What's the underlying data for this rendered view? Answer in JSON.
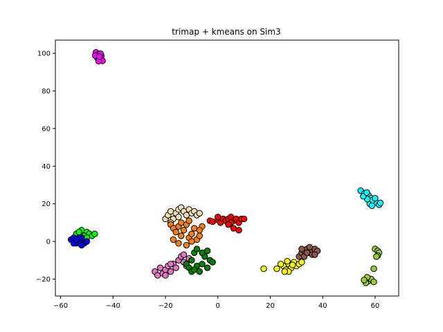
{
  "chart_data": {
    "type": "scatter",
    "title": "trimap + kmeans on Sim3",
    "xlabel": "",
    "ylabel": "",
    "xlim": [
      -62,
      69
    ],
    "ylim": [
      -29,
      107
    ],
    "xticks": [
      -60,
      -40,
      -20,
      0,
      20,
      40,
      60
    ],
    "yticks": [
      -20,
      0,
      20,
      40,
      60,
      80,
      100
    ],
    "grid": false,
    "legend": "none",
    "marker_edge_color": "#000000",
    "clusters": [
      {
        "color": "#ff00ff",
        "points": [
          [
            -46.5,
            100.5
          ],
          [
            -45.5,
            99.5
          ],
          [
            -44.5,
            98.5
          ],
          [
            -46,
            97.5
          ],
          [
            -45,
            97
          ],
          [
            -44,
            96
          ],
          [
            -45.5,
            95.8
          ],
          [
            -44.8,
            99.8
          ],
          [
            -46.8,
            98.8
          ],
          [
            -45.2,
            98.2
          ]
        ]
      },
      {
        "color": "#00ffff",
        "points": [
          [
            54.5,
            27
          ],
          [
            56,
            25.5
          ],
          [
            57.5,
            24.5
          ],
          [
            58.5,
            23
          ],
          [
            59.5,
            21.5
          ],
          [
            60.5,
            20.5
          ],
          [
            61.5,
            19.5
          ],
          [
            58,
            20
          ],
          [
            59,
            22
          ],
          [
            57,
            22.5
          ],
          [
            60,
            23
          ],
          [
            62,
            20.5
          ],
          [
            55.5,
            24
          ],
          [
            58.8,
            19
          ],
          [
            56.8,
            26
          ]
        ]
      },
      {
        "color": "#9acd32",
        "points": [
          [
            60,
            -4
          ],
          [
            61,
            -5
          ],
          [
            61.5,
            -6
          ],
          [
            61,
            -7.5
          ],
          [
            60.5,
            -8
          ],
          [
            59.5,
            -14.5
          ],
          [
            57,
            -20
          ],
          [
            57.5,
            -21
          ],
          [
            56.5,
            -22
          ],
          [
            58.5,
            -20
          ],
          [
            57,
            -19
          ],
          [
            59.5,
            -21.5
          ],
          [
            55.8,
            -20.5
          ]
        ]
      },
      {
        "color": "#ffff00",
        "points": [
          [
            17.5,
            -14.5
          ],
          [
            22.5,
            -14.5
          ],
          [
            25,
            -13
          ],
          [
            26,
            -15
          ],
          [
            27,
            -12
          ],
          [
            28,
            -14
          ],
          [
            29,
            -11
          ],
          [
            30,
            -13
          ],
          [
            31,
            -12
          ],
          [
            27,
            -16
          ],
          [
            25.5,
            -16
          ],
          [
            26.5,
            -10.5
          ],
          [
            28.5,
            -12.5
          ],
          [
            32,
            -11
          ],
          [
            24,
            -12
          ]
        ]
      },
      {
        "color": "#8c564b",
        "points": [
          [
            31,
            -8
          ],
          [
            32,
            -6
          ],
          [
            33,
            -5
          ],
          [
            34,
            -4
          ],
          [
            35,
            -6
          ],
          [
            36,
            -5
          ],
          [
            37,
            -4
          ],
          [
            33,
            -8
          ],
          [
            35,
            -3
          ],
          [
            36,
            -7
          ],
          [
            34,
            -6
          ],
          [
            38,
            -5
          ],
          [
            32,
            -4
          ],
          [
            37,
            -7
          ]
        ]
      },
      {
        "color": "#ff0000",
        "points": [
          [
            -3,
            11
          ],
          [
            -2,
            10.5
          ],
          [
            0,
            11.5
          ],
          [
            1,
            10
          ],
          [
            2,
            12
          ],
          [
            3,
            11
          ],
          [
            4,
            12
          ],
          [
            5,
            13
          ],
          [
            6,
            11
          ],
          [
            7,
            12
          ],
          [
            8,
            10
          ],
          [
            9,
            12
          ],
          [
            5,
            10
          ],
          [
            6,
            7
          ],
          [
            8,
            6
          ],
          [
            10,
            12
          ],
          [
            4,
            9
          ],
          [
            0,
            13
          ]
        ]
      },
      {
        "color": "#f5deb3",
        "points": [
          [
            -20,
            12
          ],
          [
            -19,
            14
          ],
          [
            -18,
            16
          ],
          [
            -17,
            12
          ],
          [
            -16,
            15
          ],
          [
            -15,
            17
          ],
          [
            -14,
            18
          ],
          [
            -13,
            16
          ],
          [
            -12,
            14
          ],
          [
            -11,
            17
          ],
          [
            -10,
            15
          ],
          [
            -9,
            16
          ],
          [
            -8,
            14
          ],
          [
            -7,
            15
          ],
          [
            -18,
            10
          ],
          [
            -15,
            13
          ]
        ]
      },
      {
        "color": "#ff7f0e",
        "points": [
          [
            -18,
            9
          ],
          [
            -17,
            7
          ],
          [
            -16,
            5
          ],
          [
            -15,
            8
          ],
          [
            -14,
            3
          ],
          [
            -13,
            6
          ],
          [
            -12,
            9
          ],
          [
            -11,
            2
          ],
          [
            -10,
            4
          ],
          [
            -9,
            7
          ],
          [
            -8,
            1
          ],
          [
            -7,
            3
          ],
          [
            -6,
            8
          ],
          [
            -17,
            1
          ],
          [
            -15,
            -1
          ],
          [
            -12,
            -2
          ],
          [
            -10,
            0
          ],
          [
            -7,
            6
          ],
          [
            -14,
            10
          ],
          [
            -11,
            11
          ]
        ]
      },
      {
        "color": "#e377c2",
        "points": [
          [
            -24,
            -16
          ],
          [
            -23,
            -18
          ],
          [
            -22,
            -14
          ],
          [
            -21,
            -17
          ],
          [
            -20,
            -15
          ],
          [
            -19,
            -13
          ],
          [
            -18,
            -16
          ],
          [
            -17,
            -12
          ],
          [
            -16,
            -14
          ],
          [
            -15,
            -10
          ],
          [
            -14,
            -8
          ],
          [
            -13,
            -11
          ],
          [
            -12,
            -13
          ],
          [
            -11,
            -9
          ],
          [
            -20,
            -18
          ],
          [
            -18,
            -12
          ],
          [
            -13,
            -7
          ]
        ]
      },
      {
        "color": "#008000",
        "points": [
          [
            -12,
            -12
          ],
          [
            -11,
            -14
          ],
          [
            -10,
            -10
          ],
          [
            -9,
            -6
          ],
          [
            -8,
            -4
          ],
          [
            -7,
            -16
          ],
          [
            -6,
            -12
          ],
          [
            -5,
            -8
          ],
          [
            -4,
            -14
          ],
          [
            -3,
            -10
          ],
          [
            -2,
            -11
          ],
          [
            -8,
            -13
          ],
          [
            -10,
            -16
          ],
          [
            -6,
            -6
          ],
          [
            -4,
            -5
          ],
          [
            -9,
            -15
          ]
        ]
      },
      {
        "color": "#00ff00",
        "points": [
          [
            -54,
            4
          ],
          [
            -52,
            6
          ],
          [
            -50,
            5
          ],
          [
            -49,
            4
          ],
          [
            -48,
            3
          ],
          [
            -51,
            3
          ],
          [
            -53,
            5
          ],
          [
            -50,
            2
          ],
          [
            -47,
            4
          ]
        ]
      },
      {
        "color": "#0000ff",
        "points": [
          [
            -56,
            1
          ],
          [
            -55,
            2
          ],
          [
            -54,
            -1
          ],
          [
            -53,
            0
          ],
          [
            -52,
            2
          ],
          [
            -51,
            -1
          ],
          [
            -50,
            0
          ],
          [
            -55,
            -1
          ],
          [
            -53,
            2
          ],
          [
            -52,
            -2
          ],
          [
            -54,
            1
          ]
        ]
      }
    ]
  }
}
